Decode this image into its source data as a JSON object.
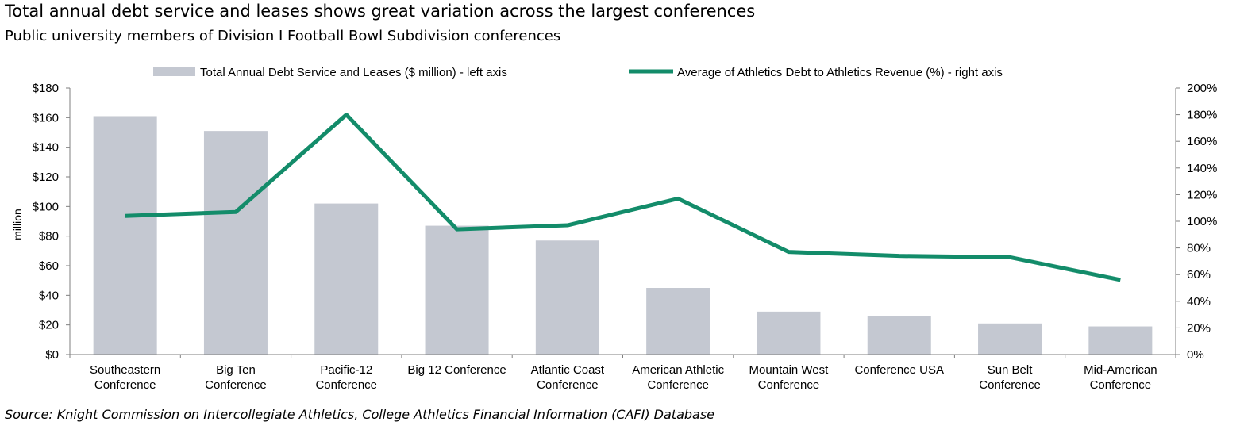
{
  "header": {
    "title": "Total annual debt service and leases shows great variation across the largest conferences",
    "subtitle": "Public university members of Division I Football Bowl Subdivision conferences"
  },
  "footer": {
    "source": "Source: Knight Commission on Intercollegiate Athletics, College Athletics Financial Information (CAFI) Database"
  },
  "chart_data": {
    "type": "bar",
    "categories": [
      [
        "Southeastern",
        "Conference"
      ],
      [
        "Big Ten",
        "Conference"
      ],
      [
        "Pacific-12",
        "Conference"
      ],
      [
        "Big 12 Conference"
      ],
      [
        "Atlantic Coast",
        "Conference"
      ],
      [
        "American Athletic",
        "Conference"
      ],
      [
        "Mountain West",
        "Conference"
      ],
      [
        "Conference USA"
      ],
      [
        "Sun Belt",
        "Conference"
      ],
      [
        "Mid-American",
        "Conference"
      ]
    ],
    "series": [
      {
        "name": "Total Annual Debt Service and Leases ($ million) - left axis",
        "type": "bar",
        "axis": "left",
        "color": "#c4c8d1",
        "values": [
          161,
          151,
          102,
          87,
          77,
          45,
          29,
          26,
          21,
          19
        ]
      },
      {
        "name": "Average of Athletics Debt to Athletics Revenue (%) - right axis",
        "type": "line",
        "axis": "right",
        "color": "#138c6a",
        "values": [
          104,
          107,
          180,
          94,
          97,
          117,
          77,
          74,
          73,
          56
        ]
      }
    ],
    "left_axis": {
      "label": "million",
      "range": [
        0,
        180
      ],
      "ticks": [
        0,
        20,
        40,
        60,
        80,
        100,
        120,
        140,
        160,
        180
      ],
      "tick_labels": [
        "$0",
        "$20",
        "$40",
        "$60",
        "$80",
        "$100",
        "$120",
        "$140",
        "$160",
        "$180"
      ]
    },
    "right_axis": {
      "label": "",
      "range": [
        0,
        200
      ],
      "ticks": [
        0,
        20,
        40,
        60,
        80,
        100,
        120,
        140,
        160,
        180,
        200
      ],
      "tick_labels": [
        "0%",
        "20%",
        "40%",
        "60%",
        "80%",
        "100%",
        "120%",
        "140%",
        "160%",
        "180%",
        "200%"
      ]
    },
    "legend_position": "top",
    "grid": false
  }
}
